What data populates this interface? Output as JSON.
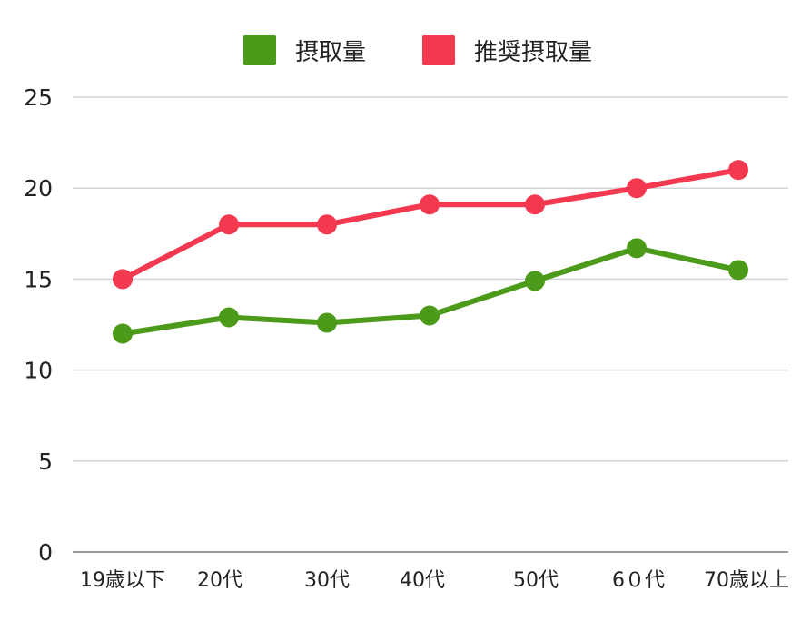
{
  "chart_data": {
    "type": "line",
    "categories": [
      "19歳以下",
      "20代",
      "30代",
      "40代",
      "50代",
      "6０代",
      "70歳以上"
    ],
    "series": [
      {
        "name": "摂取量",
        "color": "#4c9a1a",
        "values": [
          12.0,
          12.9,
          12.6,
          13.0,
          14.9,
          16.7,
          15.5
        ]
      },
      {
        "name": "推奨摂取量",
        "color": "#f2394f",
        "values": [
          15.0,
          18.0,
          18.0,
          19.1,
          19.1,
          20.0,
          21.0
        ]
      }
    ],
    "title": "",
    "xlabel": "",
    "ylabel": "",
    "ylim": [
      0,
      25
    ],
    "yticks": [
      "0",
      "5",
      "10",
      "15",
      "20",
      "25"
    ],
    "grid": true,
    "legend_position": "top-center"
  }
}
